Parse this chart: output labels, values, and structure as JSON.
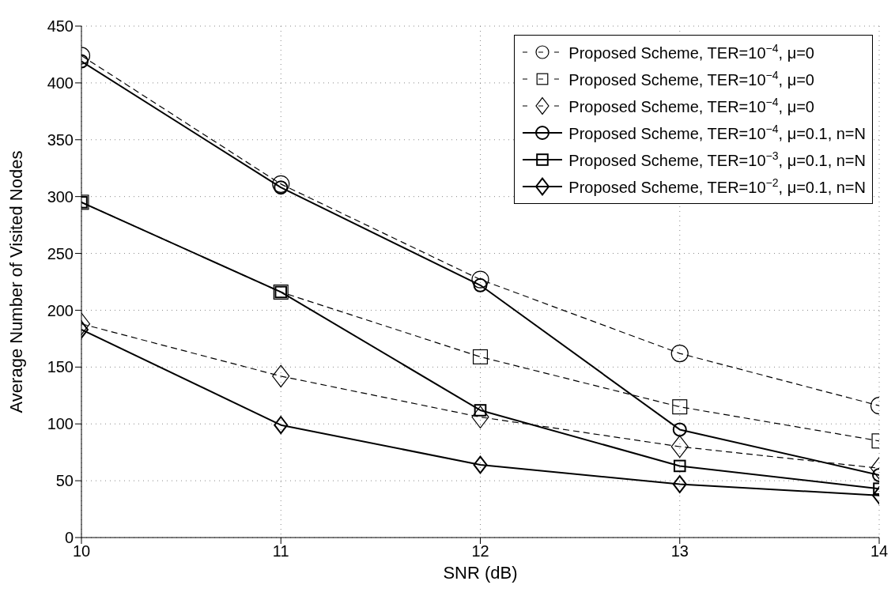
{
  "chart_data": {
    "type": "line",
    "xlabel": "SNR (dB)",
    "ylabel": "Average Number of Visited Nodes",
    "x": [
      10,
      11,
      12,
      13,
      14
    ],
    "xlim": [
      10,
      14
    ],
    "xticks": [
      10,
      11,
      12,
      13,
      14
    ],
    "ylim": [
      0,
      450
    ],
    "yticks": [
      0,
      50,
      100,
      150,
      200,
      250,
      300,
      350,
      400,
      450
    ],
    "grid": true,
    "legend": "top right",
    "series": [
      {
        "name": "Proposed Scheme, TER=10$^{−4}$, μ=0",
        "color": "#000000",
        "marker": "circle",
        "line_style": "dashed",
        "values": [
          424,
          311,
          227,
          162,
          116
        ]
      },
      {
        "name": "Proposed Scheme, TER=10$^{−4}$, μ=0",
        "color": "#000000",
        "marker": "square",
        "line_style": "dashed",
        "values": [
          295,
          216,
          159,
          115,
          85
        ]
      },
      {
        "name": "Proposed Scheme, TER=10$^{−4}$, μ=0",
        "color": "#000000",
        "marker": "diamond",
        "line_style": "dashed",
        "values": [
          188,
          142,
          106,
          80,
          61
        ]
      },
      {
        "name": "Proposed Scheme, TER=10$^{−4}$, μ=0.1, n=N",
        "color": "#000000",
        "marker": "circle",
        "line_style": "solid",
        "values": [
          419,
          308,
          222,
          95,
          55
        ]
      },
      {
        "name": "Proposed Scheme, TER=10$^{−3}$, μ=0.1, n=N",
        "color": "#000000",
        "marker": "square",
        "line_style": "solid",
        "values": [
          295,
          216,
          112,
          63,
          43
        ]
      },
      {
        "name": "Proposed Scheme, TER=10$^{−2}$, μ=0.1, n=N",
        "color": "#000000",
        "marker": "diamond",
        "line_style": "solid",
        "values": [
          183,
          99,
          64,
          47,
          37
        ]
      }
    ]
  }
}
